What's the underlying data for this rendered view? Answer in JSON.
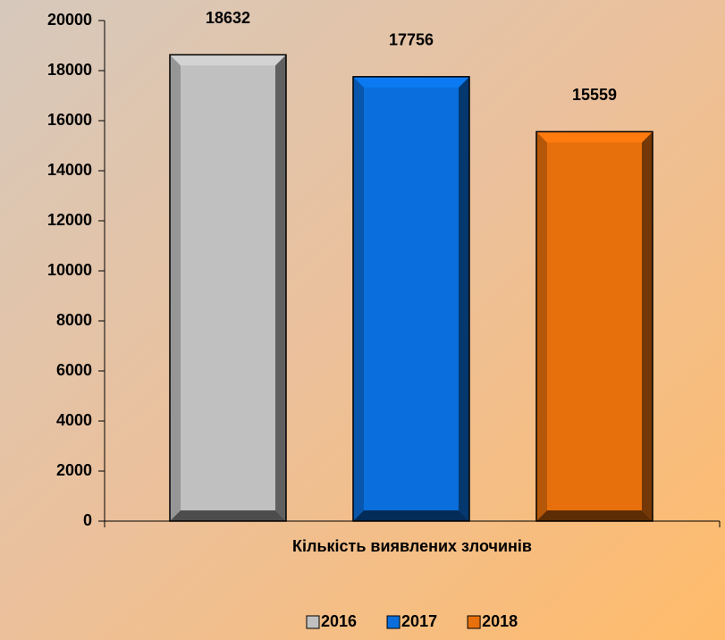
{
  "chart_data": {
    "type": "bar",
    "categories": [
      "Кількість виявлених злочинів"
    ],
    "series": [
      {
        "name": "2016",
        "color": "#c0c0c0",
        "values": [
          18632
        ]
      },
      {
        "name": "2017",
        "color": "#0a6fdc",
        "values": [
          17756
        ]
      },
      {
        "name": "2018",
        "color": "#e8700c",
        "values": [
          15559
        ]
      }
    ],
    "ylim": [
      0,
      20000
    ],
    "yticks": [
      0,
      2000,
      4000,
      6000,
      8000,
      10000,
      12000,
      14000,
      16000,
      18000,
      20000
    ],
    "legend": "bottom"
  }
}
